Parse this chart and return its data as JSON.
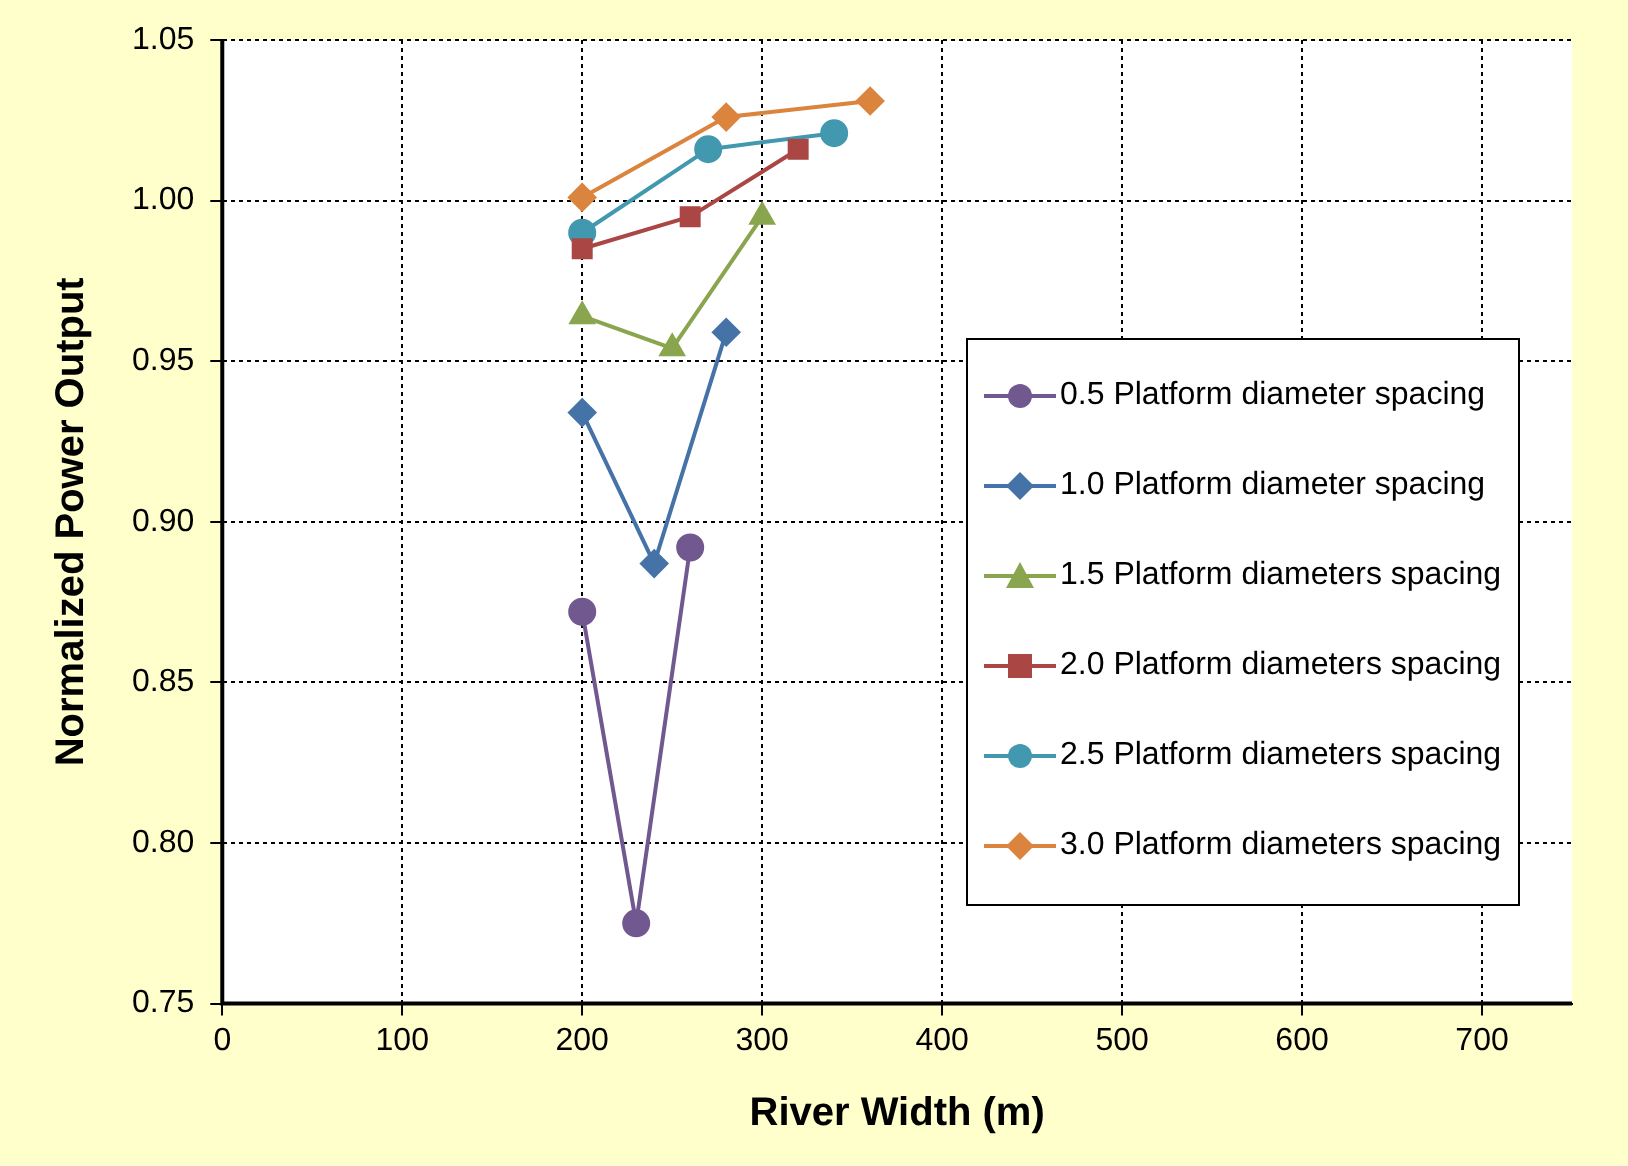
{
  "chart_data": {
    "type": "line",
    "xlabel": "River Width (m)",
    "ylabel": "Normalized Power Output",
    "xlim": [
      0,
      750
    ],
    "xticks": [
      0,
      100,
      200,
      300,
      400,
      500,
      600,
      700
    ],
    "ylim": [
      0.75,
      1.05
    ],
    "yticks": [
      {
        "value": 0.75,
        "label": "0.75"
      },
      {
        "value": 0.8,
        "label": "0.80"
      },
      {
        "value": 0.85,
        "label": "0.85"
      },
      {
        "value": 0.9,
        "label": "0.90"
      },
      {
        "value": 0.95,
        "label": "0.95"
      },
      {
        "value": 1.0,
        "label": "1.00"
      },
      {
        "value": 1.05,
        "label": "1.05"
      }
    ],
    "grid": true,
    "legend": "right",
    "line_style": "solid",
    "series": [
      {
        "name": "0.5 Platform diameter spacing",
        "color": "#71588f",
        "marker": "circle",
        "x": [
          200,
          230,
          260
        ],
        "values": [
          0.872,
          0.775,
          0.892
        ]
      },
      {
        "name": "1.0 Platform diameter spacing",
        "color": "#4572a7",
        "marker": "diamond",
        "x": [
          200,
          240,
          280
        ],
        "values": [
          0.934,
          0.887,
          0.959
        ]
      },
      {
        "name": "1.5 Platform diameters spacing",
        "color": "#89a54e",
        "marker": "triangle",
        "x": [
          200,
          250,
          300
        ],
        "values": [
          0.964,
          0.954,
          0.995
        ]
      },
      {
        "name": "2.0 Platform diameters spacing",
        "color": "#aa4643",
        "marker": "square",
        "x": [
          200,
          260,
          320
        ],
        "values": [
          0.985,
          0.995,
          1.016
        ]
      },
      {
        "name": "2.5 Platform diameters spacing",
        "color": "#4198af",
        "marker": "circle",
        "x": [
          200,
          270,
          340
        ],
        "values": [
          0.99,
          1.016,
          1.021
        ]
      },
      {
        "name": "3.0 Platform diameters spacing",
        "color": "#db843d",
        "marker": "diamond",
        "x": [
          200,
          280,
          360
        ],
        "values": [
          1.001,
          1.026,
          1.031
        ]
      }
    ]
  }
}
